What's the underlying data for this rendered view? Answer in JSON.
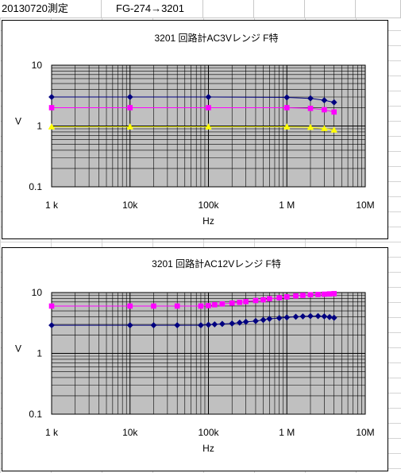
{
  "sheet": {
    "cell_date": "20130720測定",
    "cell_route": "FG-274→3201"
  },
  "colors": {
    "plot_bg": "#c0c0c0",
    "grid": "#000000",
    "navy": "#000080",
    "magenta": "#ff00ff",
    "yellow": "#ffff00"
  },
  "chart_data": [
    {
      "type": "scatter",
      "title": "3201 回路計AC3Vレンジ F特",
      "xlabel": "Hz",
      "ylabel": "V",
      "x_scale": "log",
      "y_scale": "log",
      "xlim": [
        1000,
        10000000
      ],
      "ylim": [
        0.1,
        10
      ],
      "x_ticks": [
        {
          "value": 1000,
          "label": "1 k"
        },
        {
          "value": 10000,
          "label": "10k"
        },
        {
          "value": 100000,
          "label": "100k"
        },
        {
          "value": 1000000,
          "label": "1 M"
        },
        {
          "value": 10000000,
          "label": "10M"
        }
      ],
      "y_ticks": [
        {
          "value": 10,
          "label": "10"
        },
        {
          "value": 1,
          "label": "1"
        },
        {
          "value": 0.1,
          "label": "0.1"
        }
      ],
      "grid": true,
      "legend": "none",
      "series": [
        {
          "color": "#000080",
          "marker": "diamond",
          "x": [
            1000,
            10000,
            100000,
            1000000,
            2000000,
            3000000,
            4000000
          ],
          "y": [
            3.0,
            3.0,
            3.0,
            2.95,
            2.85,
            2.65,
            2.45
          ]
        },
        {
          "color": "#ff00ff",
          "marker": "square",
          "x": [
            1000,
            10000,
            100000,
            1000000,
            2000000,
            3000000,
            4000000
          ],
          "y": [
            2.0,
            2.0,
            2.0,
            2.0,
            1.95,
            1.85,
            1.7
          ]
        },
        {
          "color": "#ffff00",
          "marker": "triangle",
          "x": [
            1000,
            10000,
            100000,
            1000000,
            2000000,
            3000000,
            4000000
          ],
          "y": [
            0.97,
            0.97,
            0.97,
            0.97,
            0.95,
            0.91,
            0.86
          ]
        }
      ]
    },
    {
      "type": "scatter",
      "title": "3201 回路計AC12Vレンジ F特",
      "xlabel": "Hz",
      "ylabel": "V",
      "x_scale": "log",
      "y_scale": "log",
      "xlim": [
        1000,
        10000000
      ],
      "ylim": [
        0.1,
        10
      ],
      "x_ticks": [
        {
          "value": 1000,
          "label": "1 k"
        },
        {
          "value": 10000,
          "label": "10k"
        },
        {
          "value": 100000,
          "label": "100k"
        },
        {
          "value": 1000000,
          "label": "1 M"
        },
        {
          "value": 10000000,
          "label": "10M"
        }
      ],
      "y_ticks": [
        {
          "value": 10,
          "label": "10"
        },
        {
          "value": 1,
          "label": "1"
        },
        {
          "value": 0.1,
          "label": "0.1"
        }
      ],
      "grid": true,
      "legend": "none",
      "series": [
        {
          "color": "#ff00ff",
          "marker": "square",
          "x": [
            1000,
            10000,
            20000,
            40000,
            80000,
            100000,
            120000,
            150000,
            200000,
            250000,
            300000,
            400000,
            500000,
            600000,
            800000,
            1000000,
            1300000,
            1600000,
            2000000,
            2500000,
            3000000,
            3500000,
            4000000
          ],
          "y": [
            6.0,
            6.0,
            6.0,
            6.0,
            6.0,
            6.1,
            6.3,
            6.5,
            6.7,
            6.9,
            7.1,
            7.4,
            7.6,
            7.9,
            8.2,
            8.5,
            8.8,
            9.0,
            9.2,
            9.3,
            9.4,
            9.5,
            9.6
          ]
        },
        {
          "color": "#000080",
          "marker": "diamond",
          "x": [
            1000,
            10000,
            20000,
            40000,
            80000,
            100000,
            120000,
            150000,
            200000,
            250000,
            300000,
            400000,
            500000,
            600000,
            800000,
            1000000,
            1300000,
            1600000,
            2000000,
            2500000,
            3000000,
            3500000,
            4000000
          ],
          "y": [
            2.9,
            2.9,
            2.9,
            2.9,
            2.9,
            2.95,
            3.0,
            3.05,
            3.1,
            3.2,
            3.3,
            3.4,
            3.55,
            3.7,
            3.8,
            3.9,
            4.0,
            4.05,
            4.1,
            4.1,
            4.05,
            3.95,
            3.85
          ]
        }
      ]
    }
  ]
}
